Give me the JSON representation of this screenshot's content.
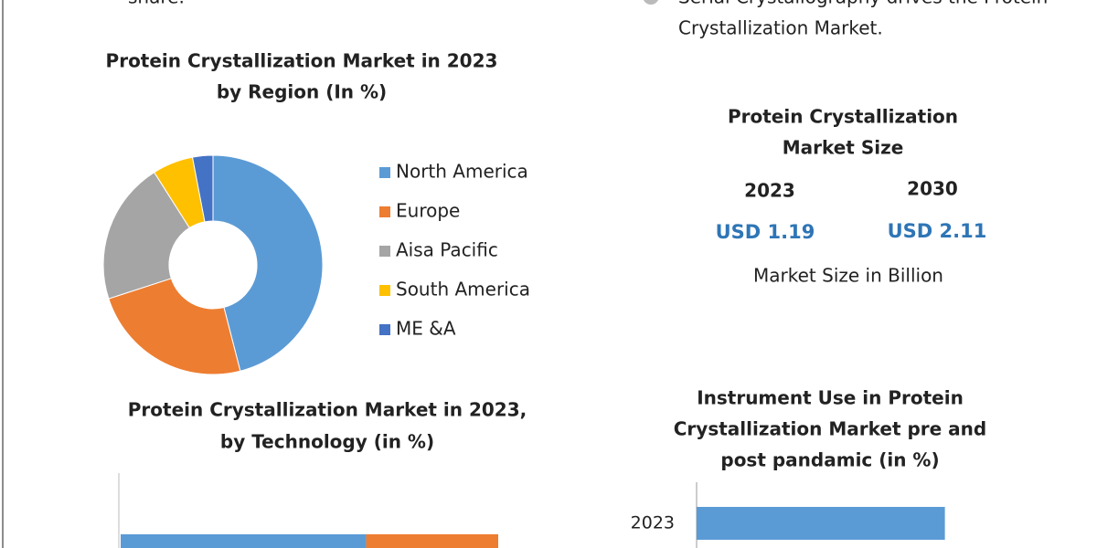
{
  "top_text": {
    "left": "share.",
    "right_lines": [
      "Serial Crystallography drives the Protein",
      "Crystallization Market."
    ]
  },
  "market_size": {
    "title_lines": [
      "Protein Crystallization",
      "Market Size"
    ],
    "years": [
      "2023",
      "2030"
    ],
    "values": [
      "USD 1.19",
      "USD 2.11"
    ],
    "note": "Market Size in Billion"
  },
  "chart_data": [
    {
      "type": "pie",
      "donut": true,
      "title_lines": [
        "Protein Crystallization Market in 2023",
        "by Region (In %)"
      ],
      "categories": [
        "North America",
        "Europe",
        "Aisa Pacific",
        "South America",
        "ME &A"
      ],
      "values": [
        46,
        24,
        21,
        6,
        3
      ],
      "colors": [
        "#5b9bd5",
        "#ed7d31",
        "#a5a5a5",
        "#ffc000",
        "#4472c4"
      ]
    },
    {
      "type": "stacked_bar",
      "title_lines": [
        "Protein Crystallization Market in 2023,",
        "by Technology (in %)"
      ],
      "xlim": [
        0,
        100
      ],
      "series": [
        {
          "color": "#5b9bd5",
          "values": [
            65
          ]
        },
        {
          "color": "#ed7d31",
          "values": [
            35
          ]
        }
      ]
    },
    {
      "type": "hbar",
      "title_lines": [
        "Instrument Use in Protein",
        "Crystallization Market pre and",
        "post pandamic (in %)"
      ],
      "categories": [
        "2023"
      ],
      "values": [
        70
      ],
      "color": "#5b9bd5",
      "xlim": [
        0,
        100
      ]
    }
  ]
}
